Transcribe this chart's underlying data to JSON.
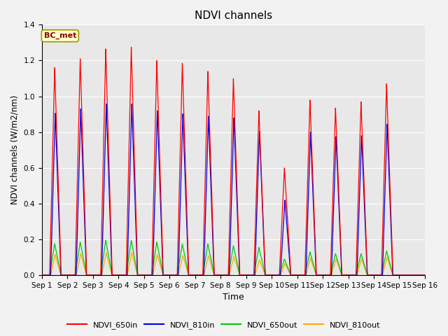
{
  "title": "NDVI channels",
  "xlabel": "Time",
  "ylabel": "NDVI channels (W/m2/nm)",
  "annotation": "BC_met",
  "ylim": [
    0,
    1.4
  ],
  "days": 15,
  "colors": {
    "NDVI_650in": "#ff0000",
    "NDVI_810in": "#0000dd",
    "NDVI_650out": "#00cc00",
    "NDVI_810out": "#ffaa00"
  },
  "legend_labels": [
    "NDVI_650in",
    "NDVI_810in",
    "NDVI_650out",
    "NDVI_810out"
  ],
  "peak_650in": [
    1.16,
    1.21,
    1.265,
    1.275,
    1.2,
    1.185,
    1.14,
    1.1,
    0.92,
    0.6,
    0.98,
    0.935,
    0.97,
    1.07
  ],
  "peak_810in": [
    0.905,
    0.93,
    0.958,
    0.958,
    0.92,
    0.902,
    0.89,
    0.88,
    0.805,
    0.42,
    0.8,
    0.775,
    0.78,
    0.845
  ],
  "peak_650out": [
    0.175,
    0.185,
    0.195,
    0.195,
    0.185,
    0.175,
    0.175,
    0.165,
    0.155,
    0.09,
    0.13,
    0.12,
    0.12,
    0.135
  ],
  "peak_810out": [
    0.115,
    0.12,
    0.125,
    0.125,
    0.115,
    0.11,
    0.11,
    0.105,
    0.085,
    0.065,
    0.095,
    0.09,
    0.09,
    0.1
  ],
  "fig_bg": "#f2f2f2",
  "plot_bg": "#e8e8e8",
  "grid_color": "#ffffff",
  "tick_labels": [
    "Sep 1",
    "Sep 2",
    "Sep 3",
    "Sep 4",
    "Sep 5",
    "Sep 6",
    "Sep 7",
    "Sep 8",
    "Sep 9",
    "Sep 10",
    "Sep 11",
    "Sep 12",
    "Sep 13",
    "Sep 14",
    "Sep 15",
    "Sep 16"
  ]
}
